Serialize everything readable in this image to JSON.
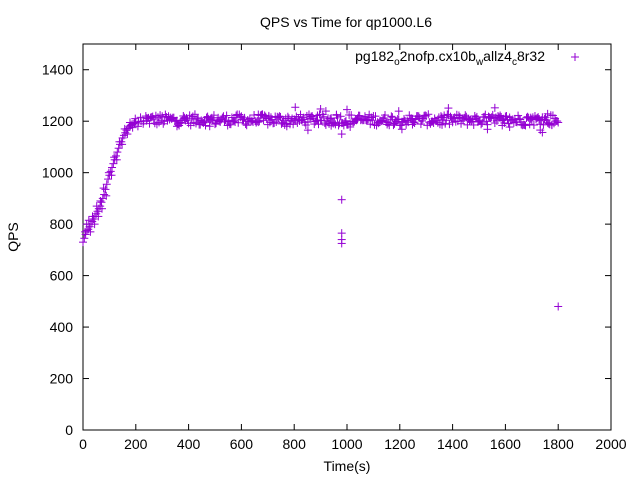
{
  "chart_data": {
    "type": "scatter",
    "title": "QPS vs Time for qp1000.L6",
    "xlabel": "Time(s)",
    "ylabel": "QPS",
    "xlim": [
      0,
      2000
    ],
    "ylim": [
      0,
      1500
    ],
    "xticks": [
      "0",
      "200",
      "400",
      "600",
      "800",
      "1000",
      "1200",
      "1400",
      "1600",
      "1800",
      "2000"
    ],
    "yticks": [
      "0",
      "200",
      "400",
      "600",
      "800",
      "1000",
      "1200",
      "1400"
    ],
    "grid": false,
    "legend_position": "top-right",
    "marker": "+",
    "color": "#9400d3",
    "legend": {
      "parts": [
        {
          "text": "pg182",
          "sub": false
        },
        {
          "text": "o",
          "sub": true
        },
        {
          "text": "2nofp.cx10b",
          "sub": false
        },
        {
          "text": "w",
          "sub": true
        },
        {
          "text": "allz4",
          "sub": false
        },
        {
          "text": "c",
          "sub": true
        },
        {
          "text": "8r32",
          "sub": false
        }
      ]
    },
    "series": [
      {
        "name": "pg182_o2nofp.cx10b_wallz4_c8r32",
        "points": [
          [
            0,
            730
          ],
          [
            5,
            745
          ],
          [
            10,
            760
          ],
          [
            15,
            775
          ],
          [
            20,
            780
          ],
          [
            25,
            790
          ],
          [
            30,
            800
          ],
          [
            35,
            810
          ],
          [
            40,
            820
          ],
          [
            45,
            830
          ],
          [
            50,
            840
          ],
          [
            55,
            850
          ],
          [
            60,
            860
          ],
          [
            65,
            870
          ],
          [
            70,
            885
          ],
          [
            75,
            900
          ],
          [
            80,
            915
          ],
          [
            85,
            935
          ],
          [
            90,
            955
          ],
          [
            95,
            975
          ],
          [
            100,
            990
          ],
          [
            105,
            1005
          ],
          [
            110,
            1020
          ],
          [
            115,
            1035
          ],
          [
            120,
            1050
          ],
          [
            125,
            1065
          ],
          [
            130,
            1080
          ],
          [
            135,
            1095
          ],
          [
            140,
            1110
          ],
          [
            145,
            1120
          ],
          [
            150,
            1135
          ],
          [
            155,
            1145
          ],
          [
            160,
            1155
          ],
          [
            165,
            1165
          ],
          [
            170,
            1172
          ],
          [
            175,
            1178
          ],
          [
            180,
            1183
          ],
          [
            185,
            1187
          ],
          [
            190,
            1190
          ],
          [
            195,
            1193
          ],
          [
            200,
            1195
          ],
          [
            210,
            1198
          ],
          [
            220,
            1200
          ],
          [
            230,
            1200
          ],
          [
            240,
            1202
          ],
          [
            8,
            770
          ],
          [
            14,
            800
          ],
          [
            22,
            815
          ],
          [
            28,
            770
          ],
          [
            36,
            830
          ],
          [
            44,
            800
          ],
          [
            52,
            870
          ],
          [
            58,
            830
          ],
          [
            66,
            890
          ],
          [
            72,
            860
          ],
          [
            78,
            940
          ],
          [
            88,
            910
          ],
          [
            98,
            1000
          ],
          [
            108,
            990
          ],
          [
            118,
            1060
          ],
          [
            128,
            1050
          ],
          [
            138,
            1120
          ],
          [
            148,
            1110
          ],
          [
            158,
            1170
          ],
          [
            168,
            1150
          ],
          [
            178,
            1195
          ],
          [
            188,
            1175
          ],
          [
            198,
            1210
          ],
          [
            208,
            1180
          ],
          [
            218,
            1215
          ],
          [
            228,
            1190
          ],
          [
            238,
            1220
          ],
          [
            980,
            895
          ],
          [
            980,
            765
          ],
          [
            980,
            740
          ],
          [
            980,
            725
          ],
          [
            980,
            1150
          ],
          [
            1800,
            480
          ]
        ],
        "band": {
          "x_start": 240,
          "x_end": 1800,
          "center": 1205,
          "spread": 22,
          "outlier_spread": 50
        }
      }
    ]
  }
}
